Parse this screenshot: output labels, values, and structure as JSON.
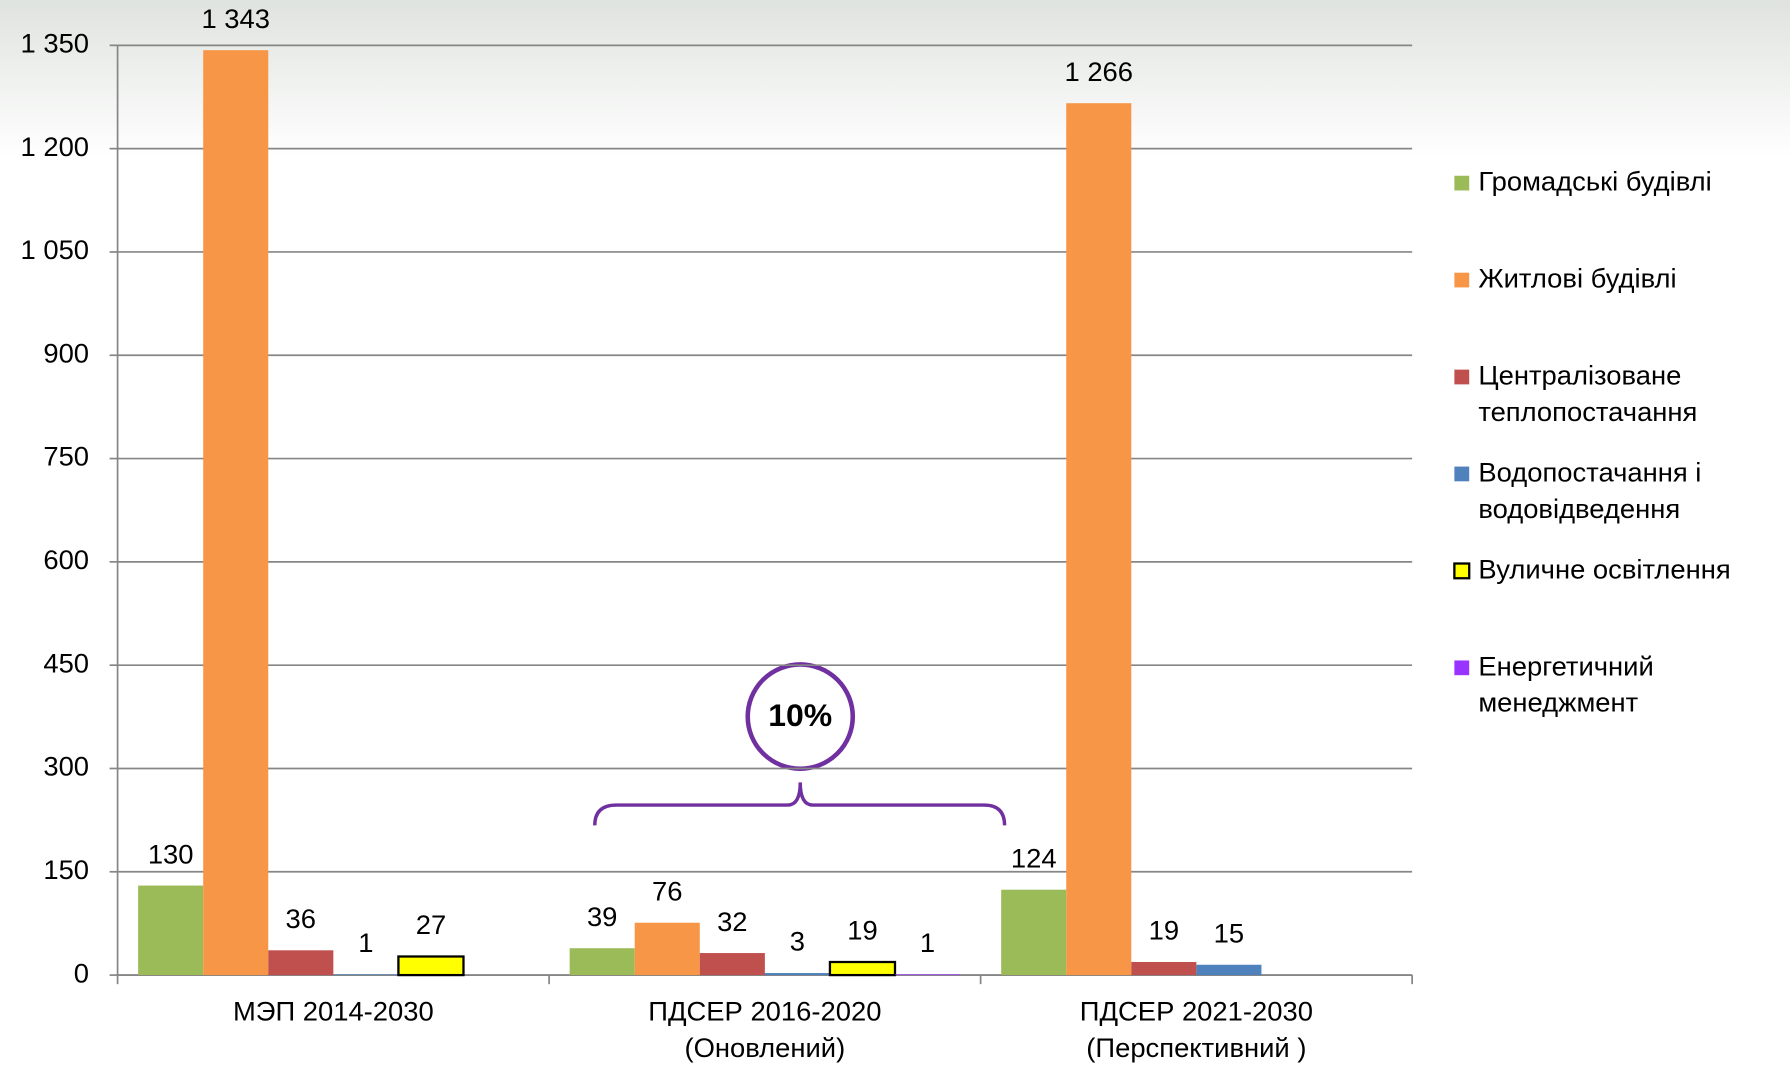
{
  "chart_data": {
    "type": "bar",
    "categories": [
      "МЭП 2014-2030",
      "ПДСЕР 2016-2020\n(Оновлений)",
      "ПДСЕР 2021-2030\n(Перспективний )"
    ],
    "series": [
      {
        "name": "Громадські будівлі",
        "color": "#9bbb59",
        "values": [
          130,
          39,
          124
        ]
      },
      {
        "name": "Житлові будівлі",
        "color": "#f79646",
        "values": [
          1343,
          76,
          1266
        ],
        "value_labels": [
          "1 343",
          "76",
          "1 266"
        ]
      },
      {
        "name": "Централізоване теплопостачання",
        "color": "#c0504d",
        "values": [
          36,
          32,
          19
        ]
      },
      {
        "name": "Водопостачання і водовідведення",
        "color": "#4f81bd",
        "values": [
          1,
          3,
          15
        ]
      },
      {
        "name": "Вуличне освітлення",
        "color": "#ffff00",
        "values": [
          27,
          19,
          null
        ]
      },
      {
        "name": "Енергетичний менеджмент",
        "color": "#9933ff",
        "values": [
          null,
          1,
          null
        ]
      }
    ],
    "ylim": [
      0,
      1350
    ],
    "yticks": [
      0,
      150,
      300,
      450,
      600,
      750,
      900,
      {
        "value": 1050,
        "label": "1 050"
      },
      {
        "value": 1200,
        "label": "1 200"
      },
      {
        "value": 1350,
        "label": "1 350"
      }
    ],
    "grid": true,
    "legend": "right",
    "annotation": "10%"
  }
}
